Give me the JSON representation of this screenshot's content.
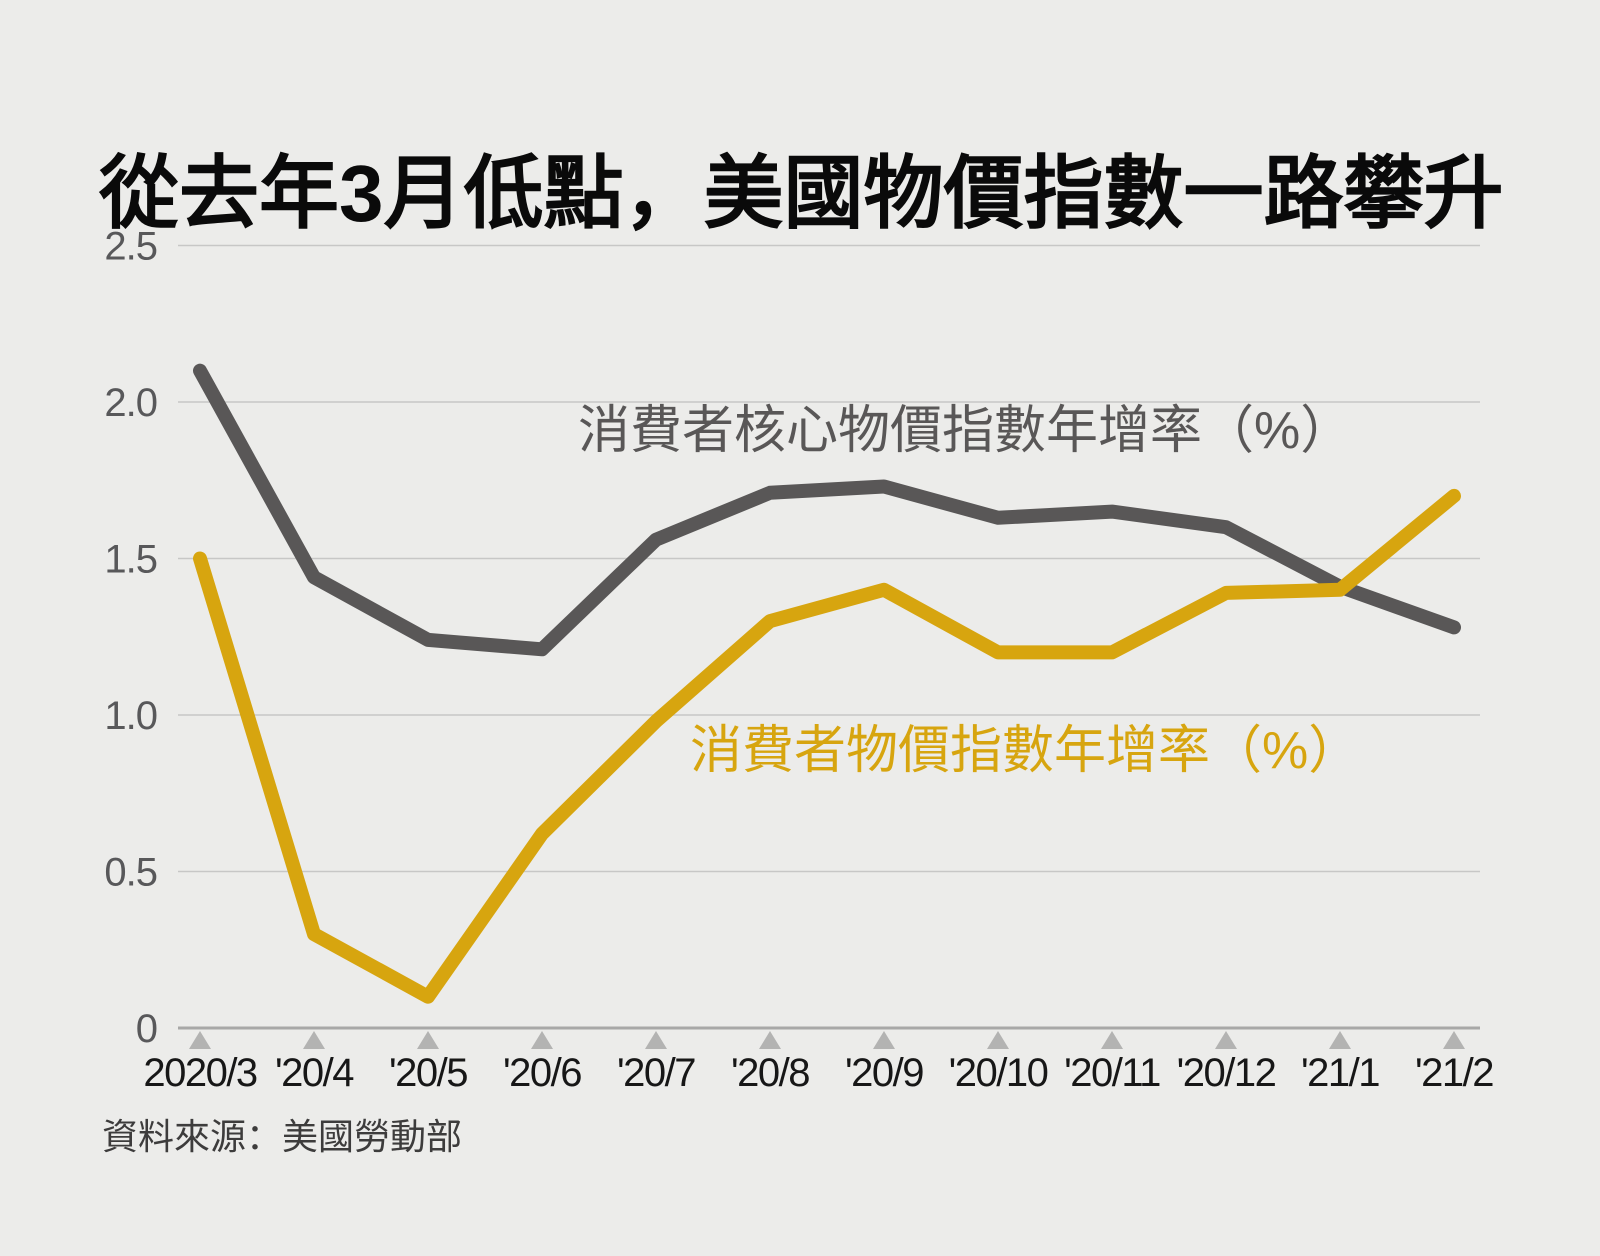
{
  "page": {
    "title": "從去年3月低點，美國物價指數一路攀升",
    "source": "資料來源：美國勞動部",
    "background": "#ececea"
  },
  "chart_data": {
    "type": "line",
    "title": "從去年3月低點，美國物價指數一路攀升",
    "categories": [
      "2020/3",
      "'20/4",
      "'20/5",
      "'20/6",
      "'20/7",
      "'20/8",
      "'20/9",
      "'20/10",
      "'20/11",
      "'20/12",
      "'21/1",
      "'21/2"
    ],
    "series": [
      {
        "name": "消費者核心物價指數年增率（%）",
        "color": "#595757",
        "values": [
          2.1,
          1.44,
          1.24,
          1.21,
          1.56,
          1.71,
          1.73,
          1.63,
          1.65,
          1.6,
          1.41,
          1.28
        ]
      },
      {
        "name": "消費者物價指數年增率（%）",
        "color": "#d7a50f",
        "values": [
          1.5,
          0.3,
          0.1,
          0.62,
          0.98,
          1.3,
          1.4,
          1.2,
          1.2,
          1.39,
          1.4,
          1.7
        ]
      }
    ],
    "xlabel": "",
    "ylabel": "",
    "ylim": [
      0,
      2.5
    ],
    "y_ticks": [
      {
        "label": "2.5",
        "value": 2.5
      },
      {
        "label": "2.0",
        "value": 2.0
      },
      {
        "label": "1.5",
        "value": 1.5
      },
      {
        "label": "1.0",
        "value": 1.0
      },
      {
        "label": "0.5",
        "value": 0.5
      },
      {
        "label": "0",
        "value": 0
      }
    ],
    "grid": true,
    "legend_position": "inline-labels",
    "x_tick_marker": "triangle-up",
    "colors": {
      "gridline": "#c7c7c6",
      "axis_line": "#a8a8a7",
      "tick_triangle": "#b3b3b2",
      "x_tick_label": "#171717",
      "y_tick_label": "#58585a",
      "title": "#0a0a0a",
      "source": "#3d3c3c"
    }
  }
}
